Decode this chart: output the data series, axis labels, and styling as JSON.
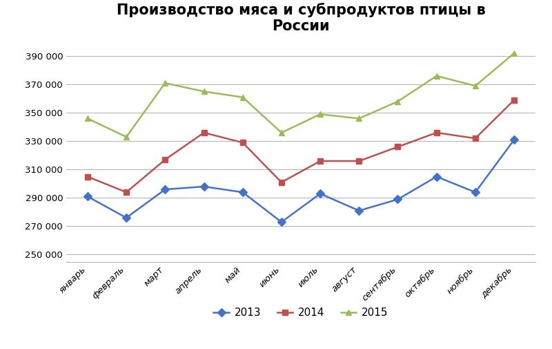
{
  "title": "Производство мяса и субпродуктов птицы в\nРоссии",
  "months": [
    "январь",
    "февраль",
    "март",
    "апрель",
    "май",
    "июнь",
    "июль",
    "август",
    "сентябрь",
    "октябрь",
    "ноябрь",
    "декабрь"
  ],
  "series": {
    "2013": [
      291000,
      276000,
      296000,
      298000,
      294000,
      273000,
      293000,
      281000,
      289000,
      305000,
      294000,
      331000
    ],
    "2014": [
      305000,
      294000,
      317000,
      336000,
      329000,
      301000,
      316000,
      316000,
      326000,
      336000,
      332000,
      359000
    ],
    "2015": [
      346000,
      333000,
      371000,
      365000,
      361000,
      336000,
      349000,
      346000,
      358000,
      376000,
      369000,
      392000
    ]
  },
  "colors": {
    "2013": "#4472C4",
    "2014": "#C0504D",
    "2015": "#9BBB59"
  },
  "markers": {
    "2013": "D",
    "2014": "s",
    "2015": "^"
  },
  "ylim": [
    245000,
    400000
  ],
  "yticks": [
    250000,
    270000,
    290000,
    310000,
    330000,
    350000,
    370000,
    390000
  ],
  "background_color": "#ffffff",
  "title_fontsize": 15,
  "legend_labels": [
    "2013",
    "2014",
    "2015"
  ]
}
